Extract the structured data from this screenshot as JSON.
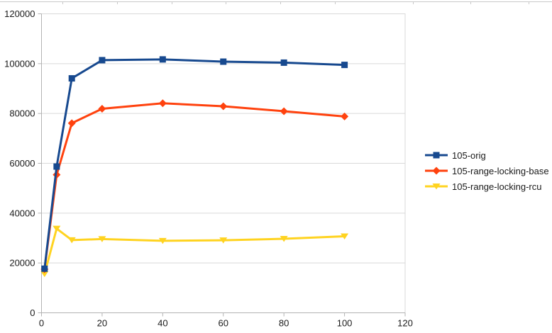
{
  "chart_data": {
    "type": "line",
    "x": [
      1,
      5,
      10,
      20,
      40,
      60,
      80,
      100
    ],
    "series": [
      {
        "name": "105-orig",
        "color": "#17498F",
        "marker": "square",
        "values": [
          17700,
          58700,
          94100,
          101400,
          101700,
          100800,
          100400,
          99500
        ]
      },
      {
        "name": "105-range-locking-base",
        "color": "#FF420E",
        "marker": "diamond",
        "values": [
          17500,
          55400,
          76100,
          81900,
          84100,
          82900,
          80900,
          78800
        ]
      },
      {
        "name": "105-range-locking-rcu",
        "color": "#FFD320",
        "marker": "triangle-down",
        "values": [
          15600,
          33800,
          29200,
          29600,
          28900,
          29100,
          29700,
          30700
        ]
      }
    ],
    "title": "",
    "xlabel": "",
    "ylabel": "",
    "xlim": [
      0,
      120
    ],
    "ylim": [
      0,
      120000
    ],
    "x_ticks": [
      0,
      20,
      40,
      60,
      80,
      100,
      120
    ],
    "y_ticks": [
      0,
      20000,
      40000,
      60000,
      80000,
      100000,
      120000
    ],
    "grid": "horizontal",
    "legend_position": "right",
    "legend_order": [
      "105-orig",
      "105-range-locking-base",
      "105-range-locking-rcu"
    ]
  },
  "style": {
    "gridline_color": "#d9d9d9",
    "axis_color": "#b3b3b3",
    "tick_label_color": "#1a1a1a",
    "background_color": "#ffffff",
    "ruler_color": "#c9c9c9"
  },
  "ruler_tick_positions": [
    88,
    165,
    242,
    318,
    395,
    472,
    582,
    663,
    745
  ]
}
